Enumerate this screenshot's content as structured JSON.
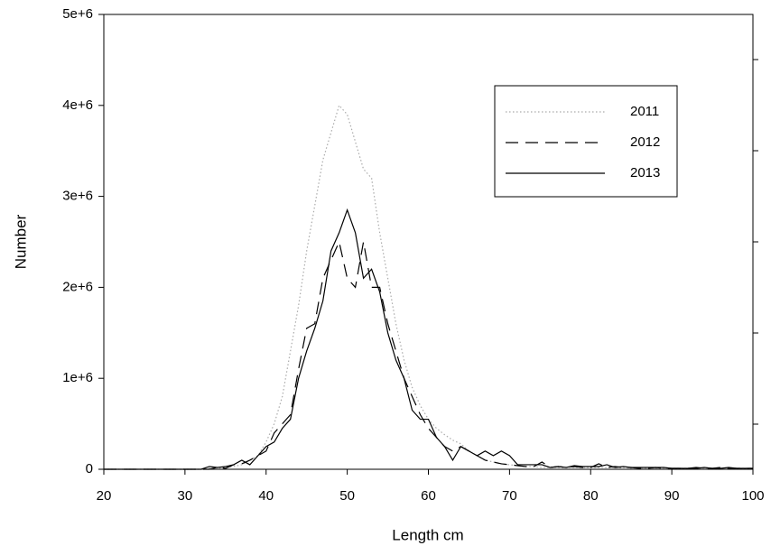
{
  "chart_data": {
    "type": "line",
    "x_label": "Length cm",
    "y_label": "Number",
    "x": [
      20,
      21,
      22,
      23,
      24,
      25,
      26,
      27,
      28,
      29,
      30,
      31,
      32,
      33,
      34,
      35,
      36,
      37,
      38,
      39,
      40,
      41,
      42,
      43,
      44,
      45,
      46,
      47,
      48,
      49,
      50,
      51,
      52,
      53,
      54,
      55,
      56,
      57,
      58,
      59,
      60,
      61,
      62,
      63,
      64,
      65,
      66,
      67,
      68,
      69,
      70,
      71,
      72,
      73,
      74,
      75,
      76,
      77,
      78,
      79,
      80,
      81,
      82,
      83,
      84,
      85,
      86,
      87,
      88,
      89,
      90,
      91,
      92,
      93,
      94,
      95,
      96,
      97,
      98,
      99,
      100
    ],
    "series": [
      {
        "name": "2011",
        "color": "#aaaaaa",
        "dash": "dotted",
        "values": [
          0,
          0,
          0,
          0,
          0,
          0,
          0,
          0,
          0,
          0,
          0,
          0,
          0,
          10000,
          10000,
          20000,
          30000,
          50000,
          100000,
          150000,
          300000,
          500000,
          800000,
          1300000,
          1800000,
          2400000,
          2900000,
          3400000,
          3700000,
          4000000,
          3900000,
          3600000,
          3300000,
          3200000,
          2600000,
          2100000,
          1600000,
          1200000,
          900000,
          700000,
          550000,
          450000,
          380000,
          320000,
          280000,
          200000,
          150000,
          100000,
          80000,
          60000,
          50000,
          40000,
          30000,
          30000,
          20000,
          20000,
          20000,
          20000,
          20000,
          20000,
          20000,
          20000,
          20000,
          20000,
          20000,
          10000,
          10000,
          10000,
          10000,
          10000,
          10000,
          10000,
          10000,
          10000,
          10000,
          10000,
          10000,
          10000,
          10000,
          10000,
          10000
        ]
      },
      {
        "name": "2012",
        "color": "#000000",
        "dash": "dashed",
        "values": [
          0,
          0,
          0,
          0,
          0,
          0,
          0,
          0,
          0,
          0,
          0,
          0,
          0,
          0,
          20000,
          10000,
          50000,
          60000,
          100000,
          150000,
          200000,
          400000,
          500000,
          600000,
          1100000,
          1550000,
          1600000,
          2100000,
          2300000,
          2500000,
          2100000,
          2000000,
          2500000,
          2000000,
          2000000,
          1600000,
          1300000,
          1000000,
          800000,
          600000,
          450000,
          350000,
          250000,
          200000,
          250000,
          200000,
          150000,
          100000,
          80000,
          60000,
          50000,
          40000,
          30000,
          30000,
          80000,
          20000,
          30000,
          20000,
          30000,
          20000,
          20000,
          60000,
          20000,
          30000,
          20000,
          20000,
          10000,
          10000,
          20000,
          10000,
          10000,
          10000,
          10000,
          20000,
          10000,
          10000,
          20000,
          10000,
          10000,
          10000,
          10000
        ]
      },
      {
        "name": "2013",
        "color": "#000000",
        "dash": "solid",
        "values": [
          0,
          0,
          0,
          0,
          0,
          0,
          0,
          0,
          0,
          0,
          0,
          0,
          0,
          30000,
          20000,
          30000,
          50000,
          100000,
          50000,
          150000,
          250000,
          300000,
          450000,
          550000,
          1000000,
          1300000,
          1550000,
          1850000,
          2400000,
          2600000,
          2850000,
          2600000,
          2100000,
          2200000,
          1950000,
          1500000,
          1200000,
          1000000,
          650000,
          550000,
          550000,
          350000,
          250000,
          100000,
          250000,
          200000,
          150000,
          200000,
          150000,
          200000,
          150000,
          50000,
          50000,
          50000,
          50000,
          20000,
          30000,
          20000,
          40000,
          30000,
          30000,
          30000,
          50000,
          20000,
          30000,
          20000,
          20000,
          20000,
          20000,
          20000,
          10000,
          10000,
          10000,
          10000,
          20000,
          10000,
          10000,
          20000,
          10000,
          10000,
          10000
        ]
      }
    ],
    "xlim": [
      20,
      100
    ],
    "xticks": [
      20,
      30,
      40,
      50,
      60,
      70,
      80,
      90,
      100
    ],
    "ylim": [
      0,
      5000000
    ],
    "yticks": [
      0,
      {
        "value": 1000000,
        "label": "1e+6"
      },
      {
        "value": 2000000,
        "label": "2e+6"
      },
      {
        "value": 3000000,
        "label": "3e+6"
      },
      {
        "value": 4000000,
        "label": "4e+6"
      },
      {
        "value": 5000000,
        "label": "5e+6"
      }
    ],
    "legend": "upper right"
  }
}
